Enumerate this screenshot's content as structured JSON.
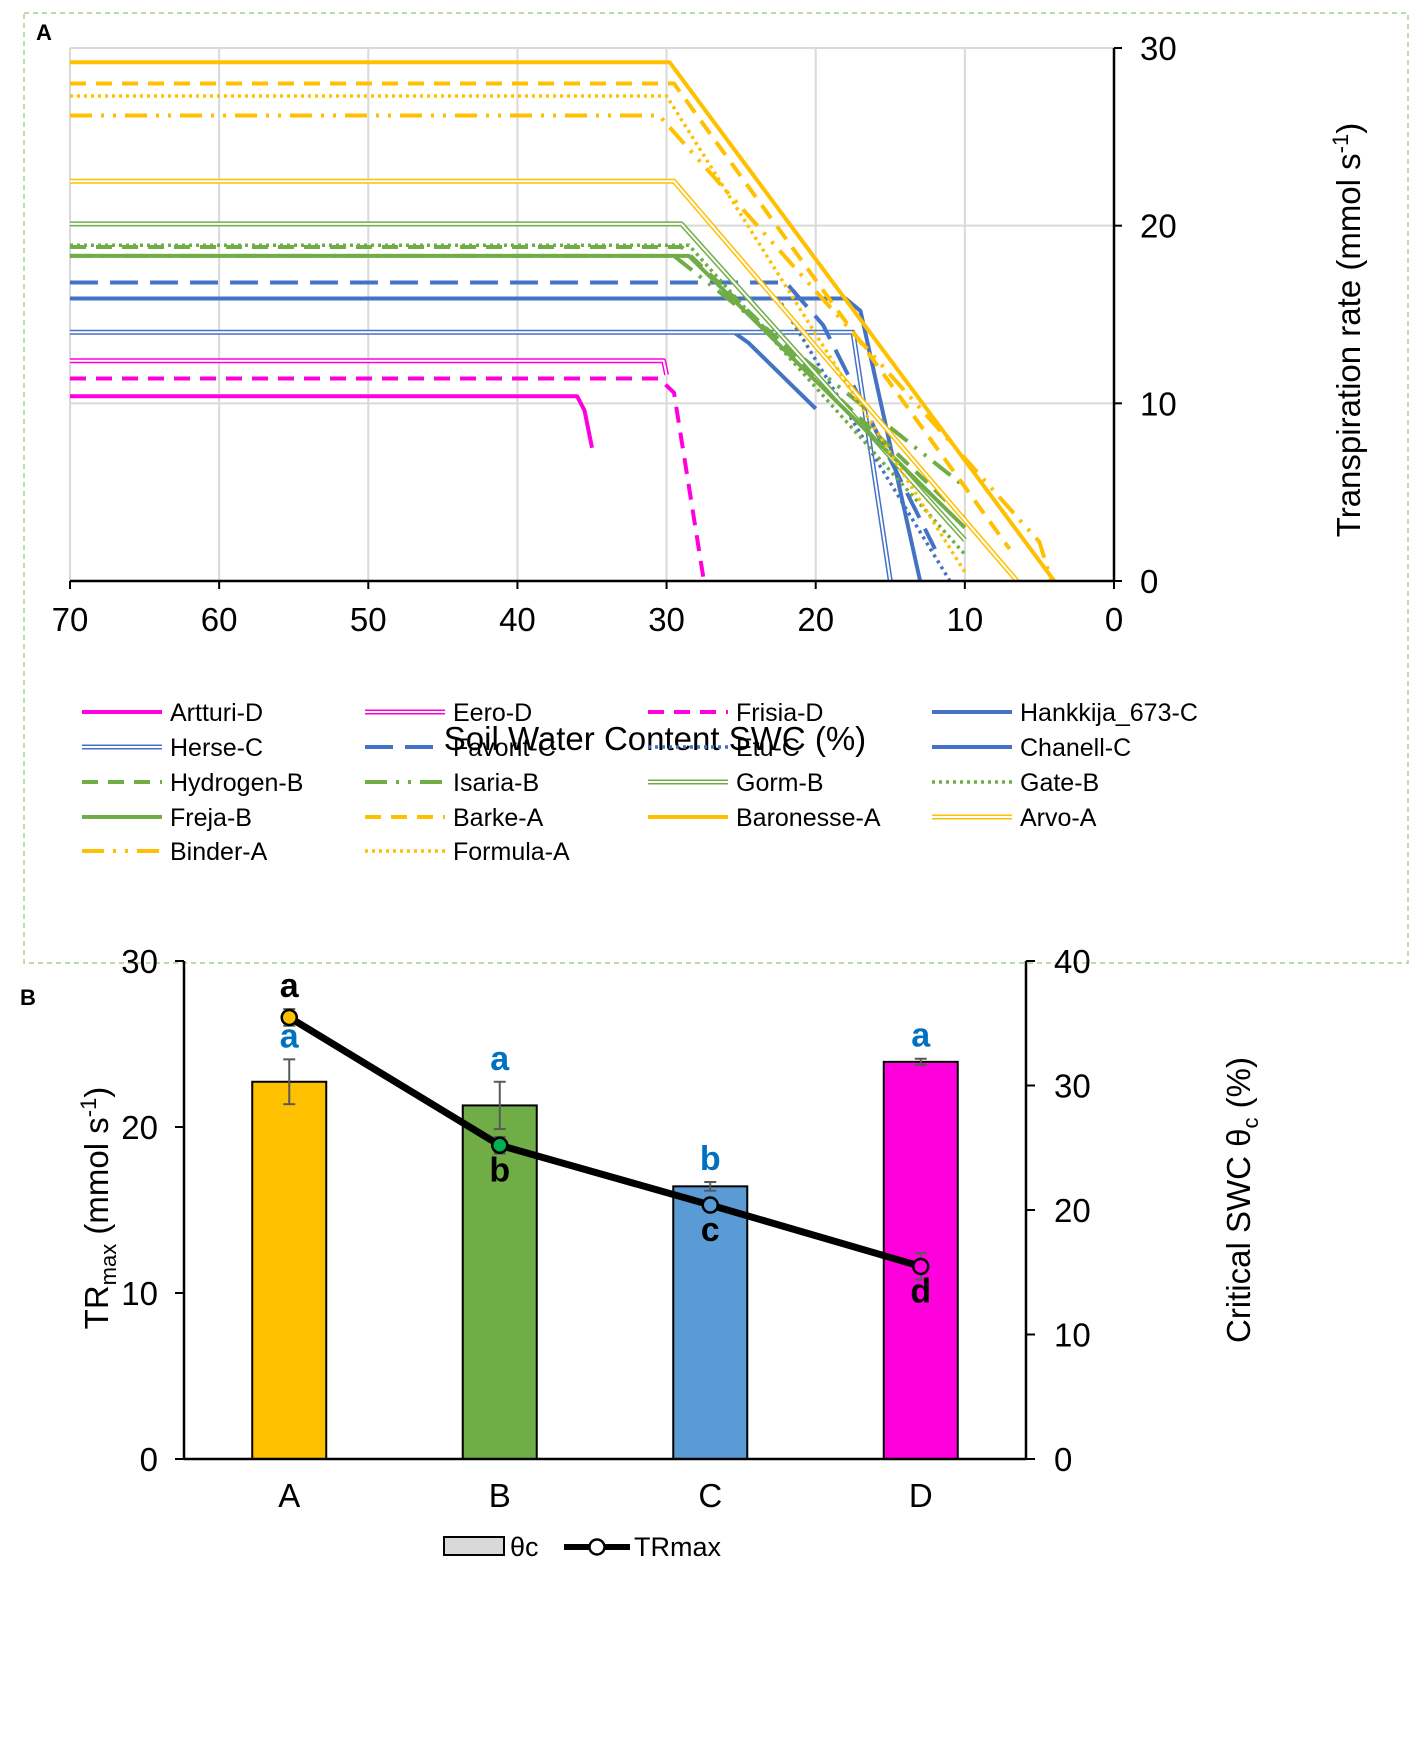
{
  "panels": {
    "a": "A",
    "b": "B"
  },
  "chart_data": [
    {
      "id": "A",
      "type": "line",
      "title": "",
      "xlabel": "Soil Water Content SWC (%)",
      "ylabel": "Transpiration rate (mmol s",
      "ylabel_sup": "-1",
      "ylabel_end": ")",
      "xlim": [
        70,
        0
      ],
      "ylim": [
        0,
        30
      ],
      "xticks": [
        70,
        60,
        50,
        40,
        30,
        20,
        10,
        0
      ],
      "yticks": [
        0,
        10,
        20,
        30
      ],
      "grid": true,
      "colors": {
        "A": "#FFC000",
        "B": "#70AD47",
        "C": "#4472C4",
        "D": "#FF00DD"
      },
      "series": [
        {
          "name": "Artturi-D",
          "group": "D",
          "style": "solid",
          "points": [
            [
              70,
              10.4
            ],
            [
              36,
              10.4
            ],
            [
              35.5,
              9.6
            ],
            [
              35,
              7.5
            ]
          ]
        },
        {
          "name": "Eero-D",
          "group": "D",
          "style": "double",
          "points": [
            [
              70,
              12.4
            ],
            [
              30.2,
              12.4
            ],
            [
              30,
              11.6
            ]
          ]
        },
        {
          "name": "Frisia-D",
          "group": "D",
          "style": "dash",
          "points": [
            [
              70,
              11.4
            ],
            [
              30.5,
              11.4
            ],
            [
              29.5,
              10.6
            ],
            [
              27.5,
              0
            ]
          ]
        },
        {
          "name": "Hankkija_673-C",
          "group": "C",
          "style": "solid",
          "points": [
            [
              70,
              14.0
            ],
            [
              25.5,
              14.0
            ],
            [
              24.5,
              13.4
            ],
            [
              20,
              9.7
            ]
          ]
        },
        {
          "name": "Herse-C",
          "group": "C",
          "style": "double",
          "points": [
            [
              70,
              14.0
            ],
            [
              17.5,
              14.0
            ],
            [
              15,
              0
            ]
          ]
        },
        {
          "name": "Favorit-C",
          "group": "C",
          "style": "longdash",
          "points": [
            [
              70,
              16.8
            ],
            [
              22,
              16.8
            ],
            [
              19.5,
              14.4
            ],
            [
              12,
              1.8
            ]
          ]
        },
        {
          "name": "Etu-C",
          "group": "C",
          "style": "dot",
          "points": [
            [
              70,
              15.9
            ],
            [
              22.5,
              15.9
            ],
            [
              11,
              0
            ]
          ]
        },
        {
          "name": "Chanell-C",
          "group": "C",
          "style": "solid",
          "points": [
            [
              70,
              15.9
            ],
            [
              18,
              15.9
            ],
            [
              17,
              15.2
            ],
            [
              13,
              0
            ]
          ]
        },
        {
          "name": "Hydrogen-B",
          "group": "B",
          "style": "dash",
          "points": [
            [
              70,
              18.8
            ],
            [
              29,
              18.8
            ],
            [
              10,
              3.5
            ]
          ]
        },
        {
          "name": "Isaria-B",
          "group": "B",
          "style": "dashdotdot",
          "points": [
            [
              70,
              18.3
            ],
            [
              29.5,
              18.3
            ],
            [
              10,
              5.3
            ]
          ]
        },
        {
          "name": "Gorm-B",
          "group": "B",
          "style": "double",
          "points": [
            [
              70,
              20.1
            ],
            [
              29,
              20.1
            ],
            [
              10,
              2.3
            ]
          ]
        },
        {
          "name": "Gate-B",
          "group": "B",
          "style": "dot",
          "points": [
            [
              70,
              18.9
            ],
            [
              28.5,
              18.9
            ],
            [
              10,
              1.5
            ]
          ]
        },
        {
          "name": "Freja-B",
          "group": "B",
          "style": "solid",
          "points": [
            [
              70,
              18.3
            ],
            [
              28.5,
              18.3
            ],
            [
              10,
              3.0
            ]
          ]
        },
        {
          "name": "Barke-A",
          "group": "A",
          "style": "dash",
          "points": [
            [
              70,
              28.0
            ],
            [
              29.5,
              28.0
            ],
            [
              7,
              1.8
            ]
          ]
        },
        {
          "name": "Baronesse-A",
          "group": "A",
          "style": "solid",
          "points": [
            [
              70,
              29.2
            ],
            [
              29.8,
              29.2
            ],
            [
              4,
              0
            ]
          ]
        },
        {
          "name": "Arvo-A",
          "group": "A",
          "style": "double",
          "points": [
            [
              70,
              22.5
            ],
            [
              29.5,
              22.5
            ],
            [
              6.5,
              0
            ]
          ]
        },
        {
          "name": "Binder-A",
          "group": "A",
          "style": "dashdotdot",
          "points": [
            [
              70,
              26.2
            ],
            [
              30.5,
              26.2
            ],
            [
              5,
              2.2
            ],
            [
              4.2,
              0
            ]
          ]
        },
        {
          "name": "Formula-A",
          "group": "A",
          "style": "dot",
          "points": [
            [
              70,
              27.3
            ],
            [
              30,
              27.3
            ],
            [
              10,
              0.5
            ]
          ]
        }
      ]
    },
    {
      "id": "B",
      "type": "bar",
      "title": "",
      "categories": [
        "A",
        "B",
        "C",
        "D"
      ],
      "xlabel": "",
      "ylabel_left": "TR",
      "ylabel_left_sub": "max",
      "ylabel_left_tail": " (mmol s",
      "ylabel_left_sup": "-1",
      "ylabel_left_end": ")",
      "ylabel_right": "Critical SWC θ",
      "ylabel_right_sub": "c",
      "ylabel_right_tail": " (%)",
      "ylim_left": [
        0,
        30
      ],
      "ylim_right": [
        0,
        40
      ],
      "yticks_left": [
        0,
        10,
        20,
        30
      ],
      "yticks_right": [
        0,
        10,
        20,
        30,
        40
      ],
      "series": [
        {
          "name": "θc",
          "kind": "bar",
          "axis": "right",
          "values": [
            30.3,
            28.4,
            21.9,
            31.9
          ],
          "errors": [
            1.8,
            1.9,
            0.35,
            0.25
          ],
          "colors": [
            "#FFC000",
            "#70AD47",
            "#5B9BD5",
            "#FF00DD"
          ],
          "letters": [
            "a",
            "a",
            "b",
            "a"
          ],
          "letter_color": "#0070C0"
        },
        {
          "name": "TRmax",
          "kind": "line",
          "axis": "left",
          "values": [
            26.6,
            18.9,
            15.3,
            11.6
          ],
          "errors": [
            0.5,
            0.5,
            0.3,
            0.8
          ],
          "markers": [
            "#FFC000",
            "#00B050",
            "#5B9BD5",
            "#FF00DD"
          ],
          "letters": [
            "a",
            "b",
            "c",
            "d"
          ],
          "letter_color": "#000000"
        }
      ],
      "legend": [
        {
          "label": "θc",
          "kind": "bar"
        },
        {
          "label": "TRmax",
          "kind": "line"
        }
      ]
    }
  ]
}
